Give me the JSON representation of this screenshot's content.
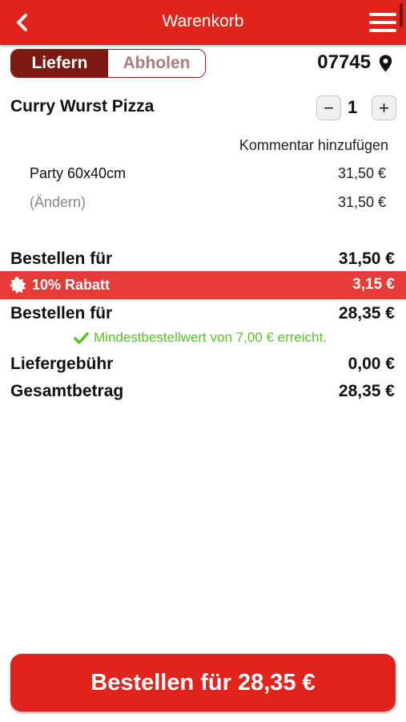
{
  "header": {
    "title": "Warenkorb",
    "back_icon": "chevron-left-icon",
    "menu_icon": "hamburger-menu-icon",
    "accent_color": "#e0231d"
  },
  "delivery_toggle": {
    "options": [
      "Liefern",
      "Abholen"
    ],
    "selected": "Liefern"
  },
  "location": {
    "zip": "07745",
    "icon": "map-pin-icon"
  },
  "cart_item": {
    "name": "Curry Wurst Pizza",
    "quantity": "1",
    "minus_symbol": "−",
    "plus_symbol": "+",
    "comment_link": "Kommentar hinzufügen",
    "size_label": "Party 60x40cm",
    "size_price": "31,50 €",
    "change_label": "(Ändern)",
    "change_price": "31,50 €"
  },
  "summary": {
    "subtotal_label": "Bestellen für",
    "subtotal_value": "31,50 €",
    "discount_label": "10% Rabatt",
    "discount_value": "3,15 €",
    "discount_color": "#e63b38",
    "discounted_label": "Bestellen für",
    "discounted_value": "28,35 €",
    "min_order_text": "Mindestbestellwert von 7,00 € erreicht.",
    "min_order_color": "#58c22a",
    "delivery_fee_label": "Liefergebühr",
    "delivery_fee_value": "0,00 €",
    "total_label": "Gesamtbetrag",
    "total_value": "28,35 €"
  },
  "cta": {
    "label": "Bestellen für 28,35 €"
  }
}
